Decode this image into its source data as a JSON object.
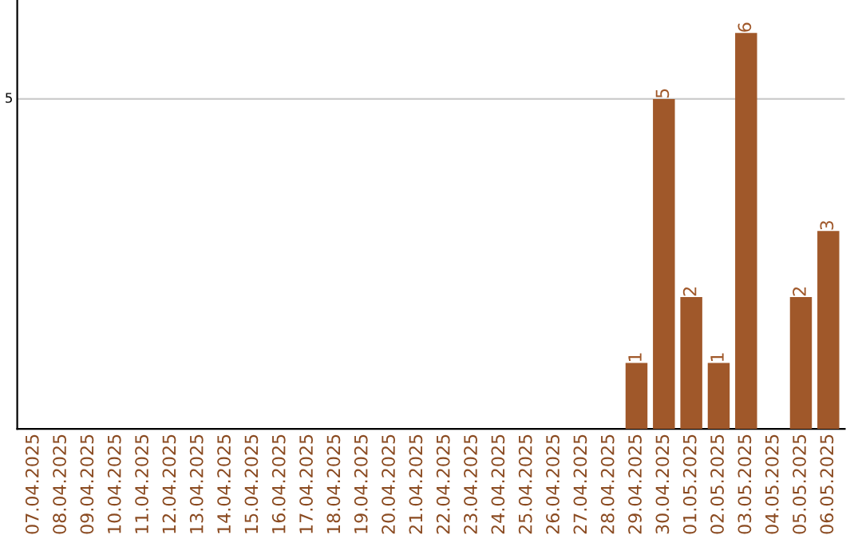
{
  "chart_data": {
    "type": "bar",
    "categories": [
      "07.04.2025",
      "08.04.2025",
      "09.04.2025",
      "10.04.2025",
      "11.04.2025",
      "12.04.2025",
      "13.04.2025",
      "14.04.2025",
      "15.04.2025",
      "16.04.2025",
      "17.04.2025",
      "18.04.2025",
      "19.04.2025",
      "20.04.2025",
      "21.04.2025",
      "22.04.2025",
      "23.04.2025",
      "24.04.2025",
      "25.04.2025",
      "26.04.2025",
      "27.04.2025",
      "28.04.2025",
      "29.04.2025",
      "30.04.2025",
      "01.05.2025",
      "02.05.2025",
      "03.05.2025",
      "04.05.2025",
      "05.05.2025",
      "06.05.2025"
    ],
    "values": [
      null,
      null,
      null,
      null,
      null,
      null,
      null,
      null,
      null,
      null,
      null,
      null,
      null,
      null,
      null,
      null,
      null,
      null,
      null,
      null,
      null,
      null,
      1,
      5,
      2,
      1,
      6,
      null,
      2,
      3
    ],
    "data_labels": true,
    "color": "#a0582a",
    "ylim": [
      0,
      6.5
    ],
    "ref_lines": [
      {
        "axis": "y",
        "value": 5,
        "label": "5",
        "color": "#cccccc"
      }
    ]
  }
}
